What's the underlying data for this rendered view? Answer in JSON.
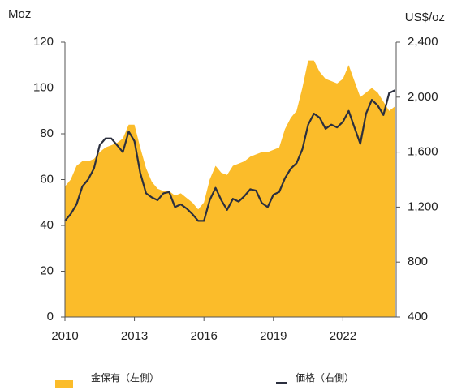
{
  "chart_data": {
    "type": "area_line",
    "y_label": "Moz",
    "y2_label": "US$/oz",
    "x": [
      2010,
      2010.25,
      2010.5,
      2010.75,
      2011,
      2011.25,
      2011.5,
      2011.75,
      2012,
      2012.25,
      2012.5,
      2012.75,
      2013,
      2013.25,
      2013.5,
      2013.75,
      2014,
      2014.25,
      2014.5,
      2014.75,
      2015,
      2015.25,
      2015.5,
      2015.75,
      2016,
      2016.25,
      2016.5,
      2016.75,
      2017,
      2017.25,
      2017.5,
      2017.75,
      2018,
      2018.25,
      2018.5,
      2018.75,
      2019,
      2019.25,
      2019.5,
      2019.75,
      2020,
      2020.25,
      2020.5,
      2020.75,
      2021,
      2021.25,
      2021.5,
      2021.75,
      2022,
      2022.25,
      2022.5,
      2022.75,
      2023,
      2023.25,
      2023.5,
      2023.75,
      2024,
      2024.25
    ],
    "series": [
      {
        "name": "金保有（左側）",
        "color": "#fbbc2a",
        "axis": "y",
        "values": [
          57,
          60,
          66,
          68,
          68,
          69,
          72,
          74,
          75,
          76,
          78,
          84,
          84,
          74,
          65,
          59,
          56,
          55,
          55,
          53,
          54,
          52,
          50,
          47,
          50,
          60,
          66,
          63,
          62,
          66,
          67,
          68,
          70,
          71,
          72,
          72,
          73,
          74,
          82,
          87,
          90,
          100,
          112,
          112,
          107,
          104,
          103,
          102,
          104,
          110,
          103,
          96,
          98,
          100,
          98,
          94,
          90,
          92
        ]
      },
      {
        "name": "価格（右側）",
        "color": "#2b2f3e",
        "axis": "y2",
        "values": [
          1100,
          1150,
          1220,
          1350,
          1400,
          1480,
          1650,
          1700,
          1700,
          1650,
          1600,
          1750,
          1680,
          1450,
          1300,
          1270,
          1250,
          1300,
          1310,
          1200,
          1220,
          1190,
          1150,
          1100,
          1100,
          1250,
          1340,
          1250,
          1180,
          1260,
          1240,
          1280,
          1330,
          1320,
          1230,
          1200,
          1290,
          1310,
          1410,
          1480,
          1520,
          1620,
          1800,
          1880,
          1850,
          1770,
          1800,
          1780,
          1820,
          1900,
          1780,
          1660,
          1880,
          1980,
          1940,
          1870,
          2030,
          2050
        ]
      }
    ],
    "xlim": [
      2010,
      2024.3
    ],
    "xticks": [
      2010,
      2013,
      2016,
      2019,
      2022
    ],
    "ylim": [
      0,
      120
    ],
    "yticks": [
      0,
      20,
      40,
      60,
      80,
      100,
      120
    ],
    "y2lim": [
      400,
      2400
    ],
    "y2ticks": [
      {
        "value": 400,
        "label": "400"
      },
      {
        "value": 800,
        "label": "800"
      },
      {
        "value": 1200,
        "label": "1,200"
      },
      {
        "value": 1600,
        "label": "1,600"
      },
      {
        "value": 2000,
        "label": "2,000"
      },
      {
        "value": 2400,
        "label": "2,400"
      }
    ],
    "legend": "bottom"
  }
}
